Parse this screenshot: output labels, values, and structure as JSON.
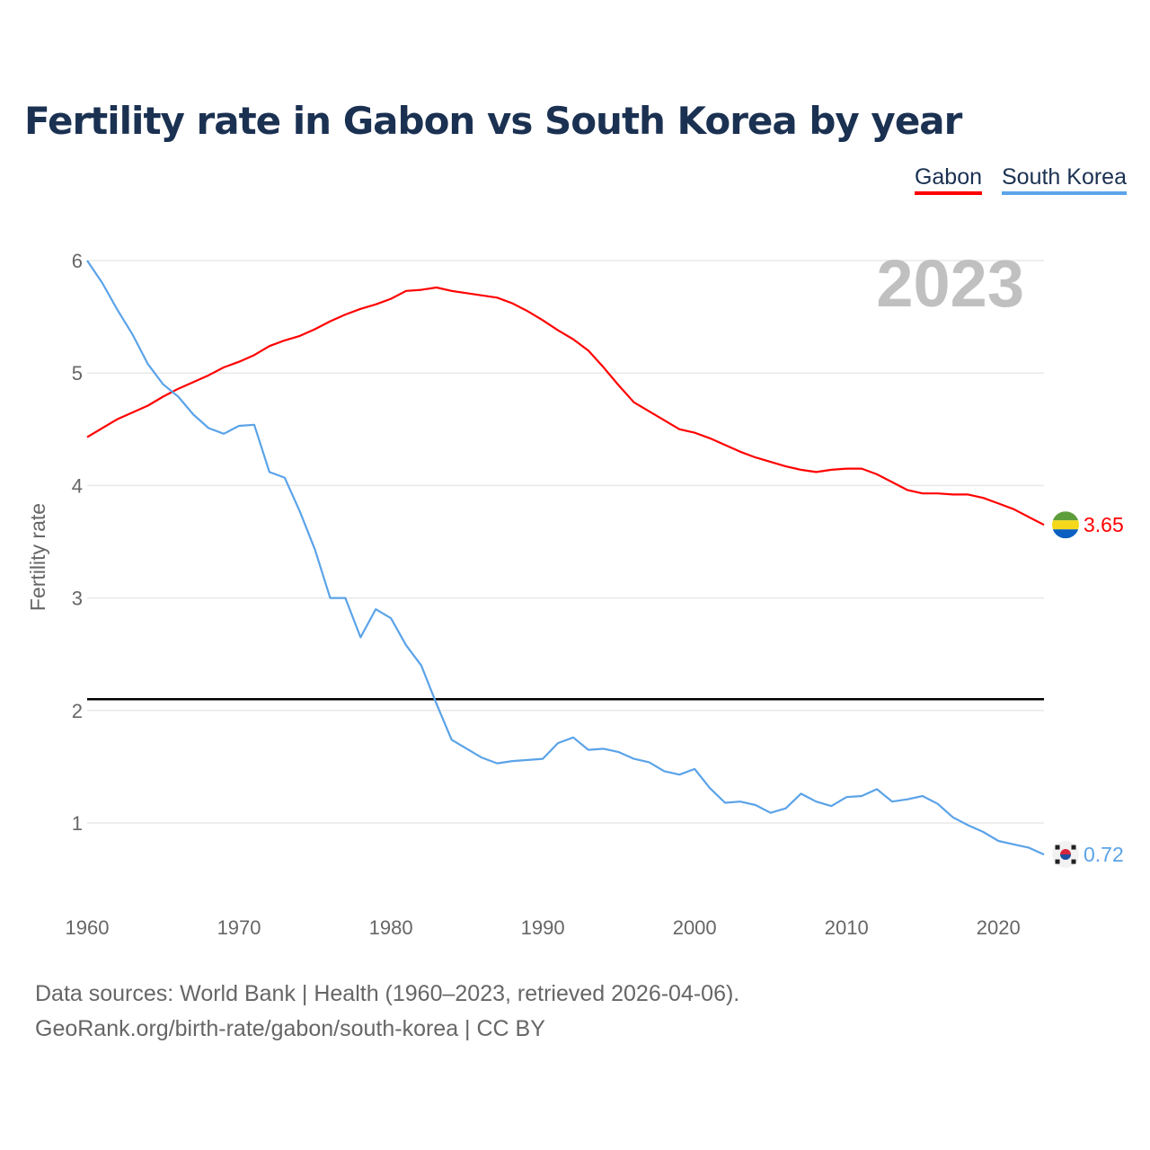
{
  "title": "Fertility rate in Gabon vs South Korea by year",
  "legend": [
    "Gabon",
    "South Korea"
  ],
  "year_watermark": "2023",
  "footer": {
    "line1": "Data sources: World Bank | Health (1960–2023, retrieved 2026-04-06).",
    "line2": "GeoRank.org/birth-rate/gabon/south-korea | CC BY"
  },
  "chart_data": {
    "type": "line",
    "title": "Fertility rate in Gabon vs South Korea by year",
    "xlabel": "",
    "ylabel": "Fertility rate",
    "xlim": [
      1960,
      2023
    ],
    "ylim": [
      0.5,
      6.1
    ],
    "x_ticks": [
      "1960",
      "1970",
      "1980",
      "1990",
      "2000",
      "2010",
      "2020"
    ],
    "y_ticks": [
      "1",
      "2",
      "3",
      "4",
      "5",
      "6"
    ],
    "grid": true,
    "legend_position": "top-right",
    "reference_line": 2.1,
    "x": [
      1960,
      1961,
      1962,
      1963,
      1964,
      1965,
      1966,
      1967,
      1968,
      1969,
      1970,
      1971,
      1972,
      1973,
      1974,
      1975,
      1976,
      1977,
      1978,
      1979,
      1980,
      1981,
      1982,
      1983,
      1984,
      1985,
      1986,
      1987,
      1988,
      1989,
      1990,
      1991,
      1992,
      1993,
      1994,
      1995,
      1996,
      1997,
      1998,
      1999,
      2000,
      2001,
      2002,
      2003,
      2004,
      2005,
      2006,
      2007,
      2008,
      2009,
      2010,
      2011,
      2012,
      2013,
      2014,
      2015,
      2016,
      2017,
      2018,
      2019,
      2020,
      2021,
      2022,
      2023
    ],
    "series": [
      {
        "name": "Gabon",
        "color": "#ff0000",
        "end_label": "3.65",
        "values": [
          4.43,
          4.51,
          4.59,
          4.65,
          4.71,
          4.79,
          4.86,
          4.92,
          4.98,
          5.05,
          5.1,
          5.16,
          5.24,
          5.29,
          5.33,
          5.39,
          5.46,
          5.52,
          5.57,
          5.61,
          5.66,
          5.73,
          5.74,
          5.76,
          5.73,
          5.71,
          5.69,
          5.67,
          5.62,
          5.55,
          5.47,
          5.38,
          5.3,
          5.2,
          5.05,
          4.89,
          4.74,
          4.66,
          4.58,
          4.5,
          4.47,
          4.42,
          4.36,
          4.3,
          4.25,
          4.21,
          4.17,
          4.14,
          4.12,
          4.14,
          4.15,
          4.15,
          4.1,
          4.03,
          3.96,
          3.93,
          3.93,
          3.92,
          3.92,
          3.89,
          3.84,
          3.79,
          3.72,
          3.65
        ]
      },
      {
        "name": "South Korea",
        "color": "#5ba3e8",
        "end_label": "0.72",
        "values": [
          6.0,
          5.8,
          5.56,
          5.34,
          5.08,
          4.9,
          4.79,
          4.63,
          4.51,
          4.46,
          4.53,
          4.54,
          4.12,
          4.07,
          3.77,
          3.43,
          3.0,
          3.0,
          2.65,
          2.9,
          2.82,
          2.58,
          2.4,
          2.06,
          1.74,
          1.66,
          1.58,
          1.53,
          1.55,
          1.56,
          1.57,
          1.71,
          1.76,
          1.65,
          1.66,
          1.63,
          1.57,
          1.54,
          1.46,
          1.43,
          1.48,
          1.31,
          1.18,
          1.19,
          1.16,
          1.09,
          1.13,
          1.26,
          1.19,
          1.15,
          1.23,
          1.24,
          1.3,
          1.19,
          1.21,
          1.24,
          1.17,
          1.05,
          0.98,
          0.92,
          0.84,
          0.81,
          0.78,
          0.72
        ]
      }
    ]
  }
}
